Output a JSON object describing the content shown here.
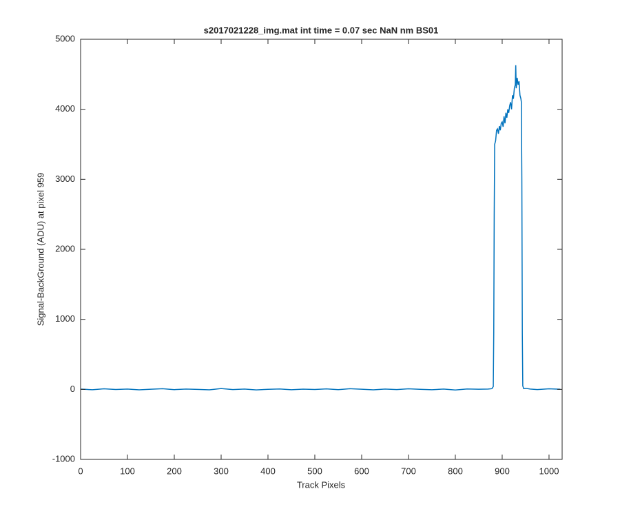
{
  "chart_data": {
    "type": "line",
    "title": "s2017021228_img.mat int time = 0.07 sec  NaN nm BS01",
    "xlabel": "Track Pixels",
    "ylabel": "Signal-BackGround (ADU) at pixel 959",
    "color": "#0072bd",
    "x": [
      1,
      25,
      50,
      75,
      100,
      125,
      150,
      175,
      200,
      225,
      250,
      275,
      300,
      325,
      350,
      375,
      400,
      425,
      450,
      475,
      500,
      525,
      550,
      575,
      600,
      625,
      650,
      675,
      700,
      725,
      750,
      775,
      800,
      825,
      850,
      870,
      878,
      881,
      882,
      883,
      884,
      886,
      888,
      890,
      892,
      894,
      896,
      898,
      900,
      902,
      904,
      906,
      908,
      910,
      912,
      914,
      916,
      918,
      920,
      922,
      924,
      926,
      928,
      929,
      930,
      932,
      934,
      936,
      938,
      940,
      941,
      942,
      943,
      944,
      946,
      950,
      960,
      975,
      1000,
      1024
    ],
    "values": [
      3,
      -5,
      8,
      -2,
      4,
      -6,
      2,
      10,
      -4,
      5,
      0,
      -7,
      12,
      -3,
      4,
      -8,
      1,
      6,
      -5,
      3,
      -2,
      7,
      -4,
      9,
      2,
      -6,
      5,
      -3,
      8,
      1,
      -5,
      4,
      -9,
      6,
      2,
      5,
      10,
      40,
      800,
      2500,
      3500,
      3550,
      3700,
      3720,
      3650,
      3760,
      3700,
      3800,
      3820,
      3750,
      3900,
      3800,
      3950,
      3880,
      4000,
      3950,
      4050,
      4100,
      4000,
      4200,
      4150,
      4300,
      4350,
      4630,
      4300,
      4450,
      4350,
      4400,
      4200,
      4150,
      4100,
      3000,
      800,
      50,
      10,
      15,
      5,
      -3,
      8,
      2
    ],
    "xlim": [
      0,
      1028
    ],
    "ylim": [
      -1000,
      5000
    ],
    "xticks": [
      0,
      100,
      200,
      300,
      400,
      500,
      600,
      700,
      800,
      900,
      1000
    ],
    "yticks": [
      -1000,
      0,
      1000,
      2000,
      3000,
      4000,
      5000
    ]
  }
}
